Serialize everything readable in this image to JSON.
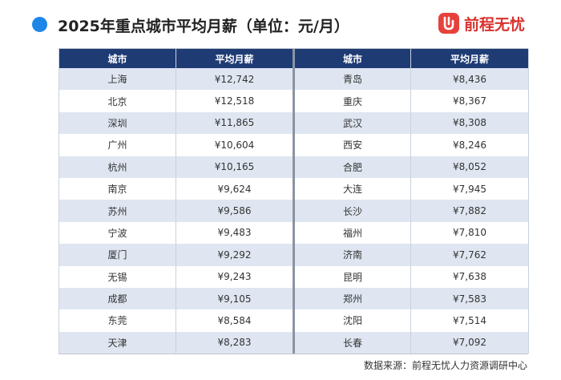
{
  "header": {
    "title": "2025年重点城市平均月薪（单位：元/月）",
    "logo_text": "前程无忧",
    "accent": "#1d86e6",
    "brand": "#e8403b"
  },
  "table": {
    "headers": [
      "城市",
      "平均月薪",
      "城市",
      "平均月薪"
    ],
    "header_bg": "#1f3b74",
    "stripe_bg": "#dfe6f1",
    "rows": [
      {
        "city_left": "上海",
        "salary_left": "¥12,742",
        "city_right": "青岛",
        "salary_right": "¥8,436"
      },
      {
        "city_left": "北京",
        "salary_left": "¥12,518",
        "city_right": "重庆",
        "salary_right": "¥8,367"
      },
      {
        "city_left": "深圳",
        "salary_left": "¥11,865",
        "city_right": "武汉",
        "salary_right": "¥8,308"
      },
      {
        "city_left": "广州",
        "salary_left": "¥10,604",
        "city_right": "西安",
        "salary_right": "¥8,246"
      },
      {
        "city_left": "杭州",
        "salary_left": "¥10,165",
        "city_right": "合肥",
        "salary_right": "¥8,052"
      },
      {
        "city_left": "南京",
        "salary_left": "¥9,624",
        "city_right": "大连",
        "salary_right": "¥7,945"
      },
      {
        "city_left": "苏州",
        "salary_left": "¥9,586",
        "city_right": "长沙",
        "salary_right": "¥7,882"
      },
      {
        "city_left": "宁波",
        "salary_left": "¥9,483",
        "city_right": "福州",
        "salary_right": "¥7,810"
      },
      {
        "city_left": "厦门",
        "salary_left": "¥9,292",
        "city_right": "济南",
        "salary_right": "¥7,762"
      },
      {
        "city_left": "无锡",
        "salary_left": "¥9,243",
        "city_right": "昆明",
        "salary_right": "¥7,638"
      },
      {
        "city_left": "成都",
        "salary_left": "¥9,105",
        "city_right": "郑州",
        "salary_right": "¥7,583"
      },
      {
        "city_left": "东莞",
        "salary_left": "¥8,584",
        "city_right": "沈阳",
        "salary_right": "¥7,514"
      },
      {
        "city_left": "天津",
        "salary_left": "¥8,283",
        "city_right": "长春",
        "salary_right": "¥7,092"
      }
    ]
  },
  "footer": {
    "source": "数据来源：前程无忧人力资源调研中心"
  }
}
